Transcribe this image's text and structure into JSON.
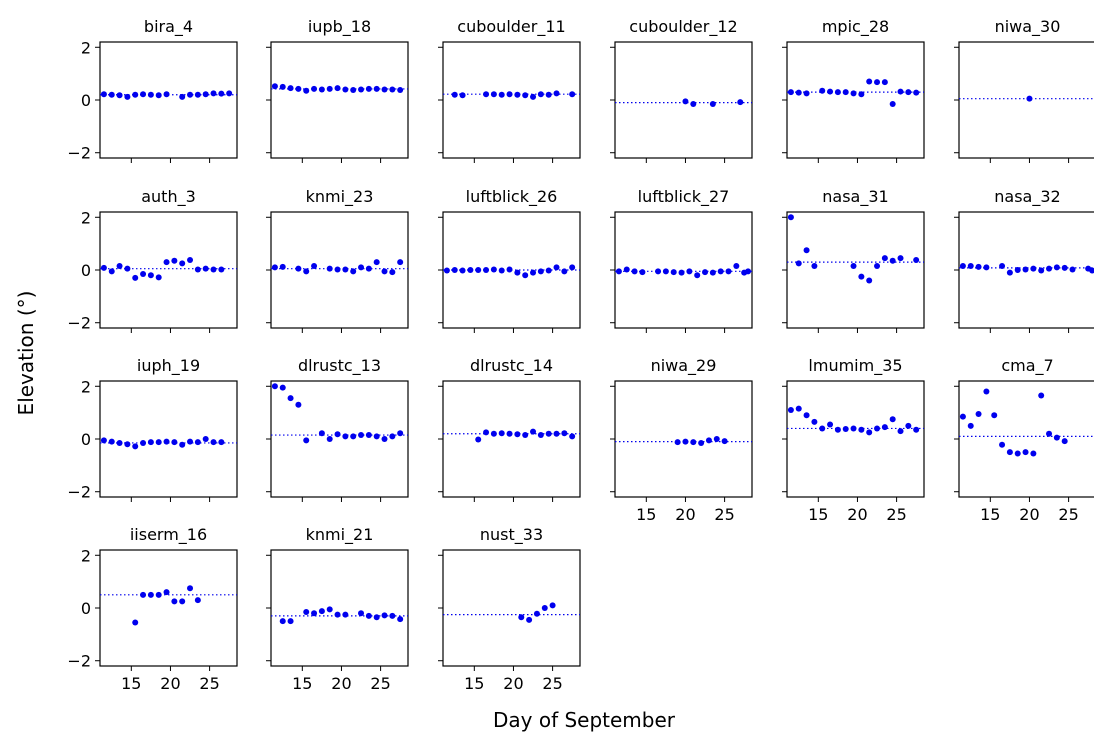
{
  "chart_data": {
    "type": "scatter",
    "layout": "small-multiples grid, 4 rows x 6 columns, shared axes",
    "xlabel": "Day of September",
    "ylabel": "Elevation (°)",
    "xlim": [
      11,
      28.5
    ],
    "ylim": [
      -2.2,
      2.2
    ],
    "xticks": [
      15,
      20,
      25
    ],
    "yticks": [
      -2,
      0,
      2
    ],
    "marker_color": "#0000ee",
    "reference_line": "dotted horizontal line at the mean of each panel",
    "panels": [
      {
        "title": "bira_4",
        "mean": 0.2,
        "points": [
          [
            11.5,
            0.22
          ],
          [
            12.5,
            0.2
          ],
          [
            13.5,
            0.18
          ],
          [
            14.5,
            0.12
          ],
          [
            15.5,
            0.2
          ],
          [
            16.5,
            0.22
          ],
          [
            17.5,
            0.2
          ],
          [
            18.5,
            0.18
          ],
          [
            19.5,
            0.22
          ],
          [
            21.5,
            0.12
          ],
          [
            22.5,
            0.2
          ],
          [
            23.5,
            0.2
          ],
          [
            24.5,
            0.22
          ],
          [
            25.5,
            0.25
          ],
          [
            26.5,
            0.24
          ],
          [
            27.5,
            0.25
          ]
        ]
      },
      {
        "title": "iupb_18",
        "mean": 0.42,
        "points": [
          [
            11.5,
            0.52
          ],
          [
            12.5,
            0.5
          ],
          [
            13.5,
            0.45
          ],
          [
            14.5,
            0.42
          ],
          [
            15.5,
            0.35
          ],
          [
            16.5,
            0.42
          ],
          [
            17.5,
            0.4
          ],
          [
            18.5,
            0.42
          ],
          [
            19.5,
            0.45
          ],
          [
            20.5,
            0.4
          ],
          [
            21.5,
            0.38
          ],
          [
            22.5,
            0.4
          ],
          [
            23.5,
            0.42
          ],
          [
            24.5,
            0.42
          ],
          [
            25.5,
            0.4
          ],
          [
            26.5,
            0.4
          ],
          [
            27.5,
            0.38
          ]
        ]
      },
      {
        "title": "cuboulder_11",
        "mean": 0.22,
        "points": [
          [
            12.5,
            0.2
          ],
          [
            13.5,
            0.18
          ],
          [
            16.5,
            0.22
          ],
          [
            17.5,
            0.22
          ],
          [
            18.5,
            0.2
          ],
          [
            19.5,
            0.22
          ],
          [
            20.5,
            0.2
          ],
          [
            21.5,
            0.18
          ],
          [
            22.5,
            0.12
          ],
          [
            23.5,
            0.22
          ],
          [
            24.5,
            0.2
          ],
          [
            25.5,
            0.25
          ],
          [
            27.5,
            0.22
          ]
        ]
      },
      {
        "title": "cuboulder_12",
        "mean": -0.1,
        "points": [
          [
            20,
            -0.05
          ],
          [
            21,
            -0.15
          ],
          [
            23.5,
            -0.15
          ],
          [
            27,
            -0.08
          ]
        ]
      },
      {
        "title": "mpic_28",
        "mean": 0.3,
        "points": [
          [
            11.5,
            0.3
          ],
          [
            12.5,
            0.28
          ],
          [
            13.5,
            0.25
          ],
          [
            15.5,
            0.35
          ],
          [
            16.5,
            0.32
          ],
          [
            17.5,
            0.3
          ],
          [
            18.5,
            0.3
          ],
          [
            19.5,
            0.25
          ],
          [
            20.5,
            0.22
          ],
          [
            21.5,
            0.7
          ],
          [
            22.5,
            0.68
          ],
          [
            23.5,
            0.68
          ],
          [
            24.5,
            -0.15
          ],
          [
            25.5,
            0.32
          ],
          [
            26.5,
            0.3
          ],
          [
            27.5,
            0.28
          ]
        ]
      },
      {
        "title": "niwa_30",
        "mean": 0.05,
        "points": [
          [
            20,
            0.05
          ]
        ]
      },
      {
        "title": "auth_3",
        "mean": 0.05,
        "points": [
          [
            11.5,
            0.08
          ],
          [
            12.5,
            -0.05
          ],
          [
            13.5,
            0.15
          ],
          [
            14.5,
            0.05
          ],
          [
            15.5,
            -0.3
          ],
          [
            16.5,
            -0.15
          ],
          [
            17.5,
            -0.2
          ],
          [
            18.5,
            -0.28
          ],
          [
            19.5,
            0.3
          ],
          [
            20.5,
            0.35
          ],
          [
            21.5,
            0.25
          ],
          [
            22.5,
            0.38
          ],
          [
            23.5,
            0.02
          ],
          [
            24.5,
            0.05
          ],
          [
            25.5,
            0.02
          ],
          [
            26.5,
            0.02
          ]
        ]
      },
      {
        "title": "knmi_23",
        "mean": 0.05,
        "points": [
          [
            11.5,
            0.1
          ],
          [
            12.5,
            0.12
          ],
          [
            14.5,
            0.05
          ],
          [
            15.5,
            -0.05
          ],
          [
            16.5,
            0.15
          ],
          [
            18.5,
            0.05
          ],
          [
            19.5,
            0.02
          ],
          [
            20.5,
            0.02
          ],
          [
            21.5,
            -0.05
          ],
          [
            22.5,
            0.1
          ],
          [
            23.5,
            0.05
          ],
          [
            24.5,
            0.3
          ],
          [
            25.5,
            -0.05
          ],
          [
            26.5,
            -0.08
          ],
          [
            27.5,
            0.3
          ]
        ]
      },
      {
        "title": "luftblick_26",
        "mean": 0.0,
        "points": [
          [
            11.5,
            -0.02
          ],
          [
            12.5,
            0.0
          ],
          [
            13.5,
            -0.02
          ],
          [
            14.5,
            0.0
          ],
          [
            15.5,
            0.0
          ],
          [
            16.5,
            0.0
          ],
          [
            17.5,
            0.02
          ],
          [
            18.5,
            -0.02
          ],
          [
            19.5,
            0.02
          ],
          [
            20.5,
            -0.1
          ],
          [
            21.5,
            -0.2
          ],
          [
            22.5,
            -0.1
          ],
          [
            23.5,
            -0.05
          ],
          [
            24.5,
            -0.02
          ],
          [
            25.5,
            0.1
          ],
          [
            26.5,
            -0.05
          ],
          [
            27.5,
            0.1
          ]
        ]
      },
      {
        "title": "luftblick_27",
        "mean": -0.05,
        "points": [
          [
            11.5,
            -0.05
          ],
          [
            12.5,
            0.02
          ],
          [
            13.5,
            -0.05
          ],
          [
            14.5,
            -0.08
          ],
          [
            16.5,
            -0.05
          ],
          [
            17.5,
            -0.05
          ],
          [
            18.5,
            -0.08
          ],
          [
            19.5,
            -0.1
          ],
          [
            20.5,
            -0.05
          ],
          [
            21.5,
            -0.2
          ],
          [
            22.5,
            -0.08
          ],
          [
            23.5,
            -0.1
          ],
          [
            24.5,
            -0.05
          ],
          [
            25.5,
            -0.05
          ],
          [
            26.5,
            0.15
          ],
          [
            27.5,
            -0.1
          ],
          [
            28,
            -0.05
          ]
        ]
      },
      {
        "title": "nasa_31",
        "mean": 0.3,
        "points": [
          [
            11.5,
            2.0
          ],
          [
            12.5,
            0.25
          ],
          [
            13.5,
            0.75
          ],
          [
            14.5,
            0.15
          ],
          [
            19.5,
            0.15
          ],
          [
            20.5,
            -0.25
          ],
          [
            21.5,
            -0.4
          ],
          [
            22.5,
            0.15
          ],
          [
            23.5,
            0.45
          ],
          [
            24.5,
            0.35
          ],
          [
            25.5,
            0.45
          ],
          [
            27.5,
            0.38
          ]
        ]
      },
      {
        "title": "nasa_32",
        "mean": 0.08,
        "points": [
          [
            11.5,
            0.15
          ],
          [
            12.5,
            0.15
          ],
          [
            13.5,
            0.12
          ],
          [
            14.5,
            0.1
          ],
          [
            16.5,
            0.15
          ],
          [
            17.5,
            -0.1
          ],
          [
            18.5,
            0.0
          ],
          [
            19.5,
            0.02
          ],
          [
            20.5,
            0.05
          ],
          [
            21.5,
            -0.02
          ],
          [
            22.5,
            0.05
          ],
          [
            23.5,
            0.1
          ],
          [
            24.5,
            0.08
          ],
          [
            25.5,
            0.02
          ],
          [
            27.5,
            0.05
          ],
          [
            28,
            -0.02
          ]
        ]
      },
      {
        "title": "iuph_19",
        "mean": -0.15,
        "points": [
          [
            11.5,
            -0.05
          ],
          [
            12.5,
            -0.1
          ],
          [
            13.5,
            -0.15
          ],
          [
            14.5,
            -0.2
          ],
          [
            15.5,
            -0.28
          ],
          [
            16.5,
            -0.15
          ],
          [
            17.5,
            -0.12
          ],
          [
            18.5,
            -0.12
          ],
          [
            19.5,
            -0.1
          ],
          [
            20.5,
            -0.12
          ],
          [
            21.5,
            -0.22
          ],
          [
            22.5,
            -0.1
          ],
          [
            23.5,
            -0.12
          ],
          [
            24.5,
            0.0
          ],
          [
            25.5,
            -0.12
          ],
          [
            26.5,
            -0.12
          ]
        ]
      },
      {
        "title": "dlrustc_13",
        "mean": 0.15,
        "points": [
          [
            11.5,
            2.0
          ],
          [
            12.5,
            1.95
          ],
          [
            13.5,
            1.55
          ],
          [
            14.5,
            1.3
          ],
          [
            15.5,
            -0.05
          ],
          [
            17.5,
            0.22
          ],
          [
            18.5,
            0.0
          ],
          [
            19.5,
            0.18
          ],
          [
            20.5,
            0.1
          ],
          [
            21.5,
            0.1
          ],
          [
            22.5,
            0.15
          ],
          [
            23.5,
            0.15
          ],
          [
            24.5,
            0.1
          ],
          [
            25.5,
            0.0
          ],
          [
            26.5,
            0.1
          ],
          [
            27.5,
            0.22
          ]
        ]
      },
      {
        "title": "dlrustc_14",
        "mean": 0.2,
        "points": [
          [
            15.5,
            -0.02
          ],
          [
            16.5,
            0.25
          ],
          [
            17.5,
            0.2
          ],
          [
            18.5,
            0.22
          ],
          [
            19.5,
            0.2
          ],
          [
            20.5,
            0.18
          ],
          [
            21.5,
            0.15
          ],
          [
            22.5,
            0.28
          ],
          [
            23.5,
            0.15
          ],
          [
            24.5,
            0.2
          ],
          [
            25.5,
            0.2
          ],
          [
            26.5,
            0.22
          ],
          [
            27.5,
            0.1
          ]
        ]
      },
      {
        "title": "niwa_29",
        "mean": -0.1,
        "points": [
          [
            19,
            -0.12
          ],
          [
            20,
            -0.1
          ],
          [
            21,
            -0.12
          ],
          [
            22,
            -0.15
          ],
          [
            23,
            -0.05
          ],
          [
            24,
            0.0
          ],
          [
            25,
            -0.08
          ]
        ]
      },
      {
        "title": "lmumim_35",
        "mean": 0.4,
        "points": [
          [
            11.5,
            1.1
          ],
          [
            12.5,
            1.15
          ],
          [
            13.5,
            0.9
          ],
          [
            14.5,
            0.65
          ],
          [
            15.5,
            0.4
          ],
          [
            16.5,
            0.55
          ],
          [
            17.5,
            0.35
          ],
          [
            18.5,
            0.38
          ],
          [
            19.5,
            0.4
          ],
          [
            20.5,
            0.35
          ],
          [
            21.5,
            0.25
          ],
          [
            22.5,
            0.4
          ],
          [
            23.5,
            0.45
          ],
          [
            24.5,
            0.75
          ],
          [
            25.5,
            0.3
          ],
          [
            26.5,
            0.5
          ],
          [
            27.5,
            0.35
          ]
        ]
      },
      {
        "title": "cma_7",
        "mean": 0.1,
        "points": [
          [
            11.5,
            0.85
          ],
          [
            12.5,
            0.5
          ],
          [
            13.5,
            0.95
          ],
          [
            14.5,
            1.8
          ],
          [
            15.5,
            0.9
          ],
          [
            16.5,
            -0.22
          ],
          [
            17.5,
            -0.5
          ],
          [
            18.5,
            -0.55
          ],
          [
            19.5,
            -0.5
          ],
          [
            20.5,
            -0.55
          ],
          [
            21.5,
            1.65
          ],
          [
            22.5,
            0.2
          ],
          [
            23.5,
            0.05
          ],
          [
            24.5,
            -0.08
          ]
        ]
      },
      {
        "title": "iiserm_16",
        "mean": 0.5,
        "points": [
          [
            15.5,
            -0.55
          ],
          [
            16.5,
            0.5
          ],
          [
            17.5,
            0.5
          ],
          [
            18.5,
            0.5
          ],
          [
            19.5,
            0.6
          ],
          [
            20.5,
            0.25
          ],
          [
            21.5,
            0.25
          ],
          [
            22.5,
            0.75
          ],
          [
            23.5,
            0.3
          ]
        ]
      },
      {
        "title": "knmi_21",
        "mean": -0.3,
        "points": [
          [
            12.5,
            -0.5
          ],
          [
            13.5,
            -0.5
          ],
          [
            15.5,
            -0.15
          ],
          [
            16.5,
            -0.2
          ],
          [
            17.5,
            -0.12
          ],
          [
            18.5,
            -0.05
          ],
          [
            19.5,
            -0.25
          ],
          [
            20.5,
            -0.25
          ],
          [
            22.5,
            -0.2
          ],
          [
            23.5,
            -0.3
          ],
          [
            24.5,
            -0.35
          ],
          [
            25.5,
            -0.28
          ],
          [
            26.5,
            -0.3
          ],
          [
            27.5,
            -0.42
          ]
        ]
      },
      {
        "title": "nust_33",
        "mean": -0.25,
        "points": [
          [
            21,
            -0.35
          ],
          [
            22,
            -0.45
          ],
          [
            23,
            -0.22
          ],
          [
            24,
            0.0
          ],
          [
            25,
            0.1
          ]
        ]
      }
    ]
  }
}
